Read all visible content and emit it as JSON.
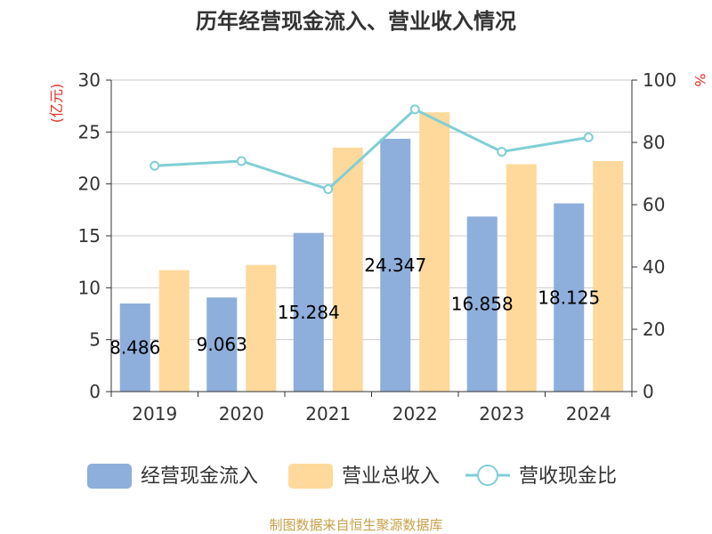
{
  "chart_data": {
    "type": "bar",
    "title": "历年经营现金流入、营业收入情况",
    "categories": [
      "2019",
      "2020",
      "2021",
      "2022",
      "2023",
      "2024"
    ],
    "y_left": {
      "unit_label": "(亿元)",
      "ylim": [
        0,
        30
      ],
      "ticks": [
        "0",
        "5",
        "10",
        "15",
        "20",
        "25",
        "30"
      ]
    },
    "y_right": {
      "unit_label": "%",
      "ylim": [
        0,
        100
      ],
      "ticks": [
        "0",
        "20",
        "40",
        "60",
        "80",
        "100"
      ]
    },
    "series": [
      {
        "name": "经营现金流入",
        "kind": "bar",
        "axis": "left",
        "color": "#8eaedb",
        "values": [
          8.486,
          9.063,
          15.284,
          24.347,
          16.858,
          18.125
        ],
        "labels": [
          "8.486",
          "9.063",
          "15.284",
          "24.347",
          "16.858",
          "18.125"
        ]
      },
      {
        "name": "营业总收入",
        "kind": "bar",
        "axis": "left",
        "color": "#fed99b",
        "values": [
          11.7,
          12.2,
          23.5,
          26.9,
          21.9,
          22.2
        ]
      },
      {
        "name": "营收现金比",
        "kind": "line",
        "axis": "right",
        "color": "#7fcfd5",
        "values": [
          72.5,
          74.0,
          65.0,
          90.6,
          77.0,
          81.6
        ]
      }
    ],
    "grid": true,
    "legend_position": "bottom"
  },
  "source_text": "制图数据来自恒生聚源数据库"
}
